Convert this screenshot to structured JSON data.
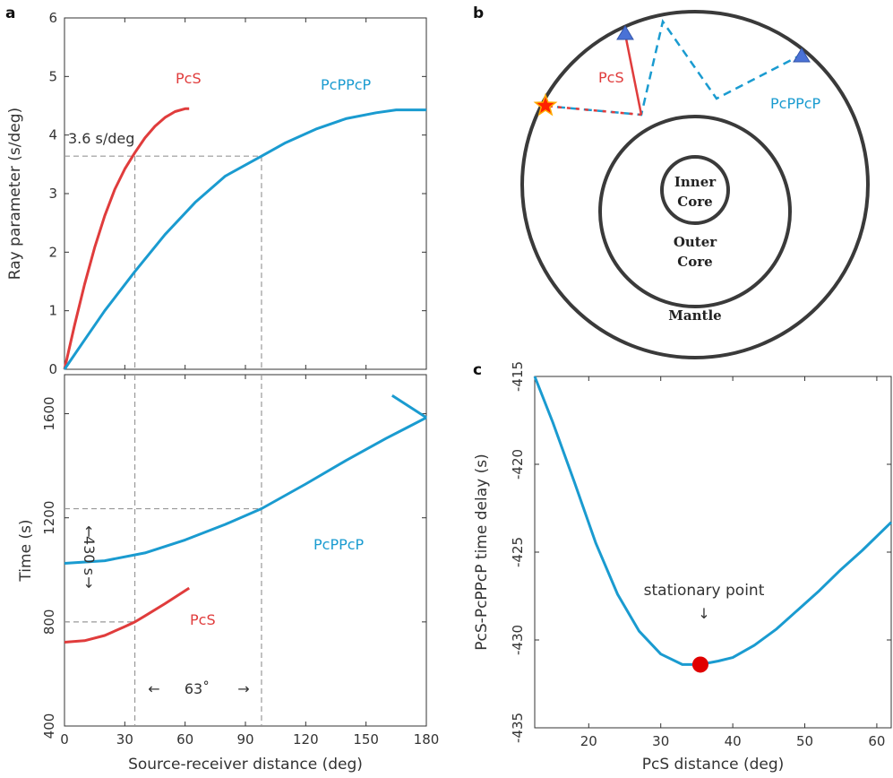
{
  "colors": {
    "pcs": "#e03c3c",
    "pcppcp": "#1a9bd0",
    "axis": "#333333",
    "guide": "#999999",
    "marker": "#e00000",
    "receiver": "#4a72d6",
    "source": "#ff2200"
  },
  "panels": {
    "a": "a",
    "b": "b",
    "c": "c"
  },
  "chart_data": [
    {
      "type": "line",
      "panel": "a-top",
      "xlabel": "",
      "ylabel": "Ray parameter (s/deg)",
      "xlim": [
        0,
        180
      ],
      "ylim": [
        0,
        6
      ],
      "yticks": [
        0,
        1,
        2,
        3,
        4,
        5,
        6
      ],
      "series": [
        {
          "name": "PcS",
          "color": "#e03c3c",
          "x": [
            0,
            5,
            10,
            15,
            20,
            25,
            30,
            35,
            40,
            45,
            50,
            55,
            60,
            62
          ],
          "y": [
            0,
            0.75,
            1.45,
            2.08,
            2.62,
            3.07,
            3.42,
            3.7,
            3.95,
            4.15,
            4.3,
            4.4,
            4.45,
            4.45
          ]
        },
        {
          "name": "PcPPcP",
          "color": "#1a9bd0",
          "x": [
            0,
            10,
            20,
            35,
            50,
            65,
            80,
            98,
            110,
            125,
            140,
            155,
            165,
            180
          ],
          "y": [
            0,
            0.5,
            1.0,
            1.67,
            2.3,
            2.85,
            3.3,
            3.64,
            3.87,
            4.1,
            4.28,
            4.38,
            4.43,
            4.43
          ]
        }
      ],
      "annotations": [
        {
          "text": "3.6 s/deg"
        }
      ],
      "guides": {
        "p_value": 3.64,
        "x_values": [
          35,
          98
        ]
      }
    },
    {
      "type": "line",
      "panel": "a-bottom",
      "xlabel": "Source-receiver distance (deg)",
      "ylabel": "Time (s)",
      "xlim": [
        0,
        180
      ],
      "ylim": [
        400,
        1750
      ],
      "xticks": [
        0,
        30,
        60,
        90,
        120,
        150,
        180
      ],
      "yticks": [
        400,
        800,
        1200,
        1600
      ],
      "series": [
        {
          "name": "PcPPcP",
          "color": "#1a9bd0",
          "x": [
            0,
            20,
            40,
            60,
            80,
            98,
            120,
            140,
            160,
            170,
            180
          ],
          "y": [
            1025,
            1035,
            1065,
            1115,
            1175,
            1235,
            1330,
            1420,
            1505,
            1545,
            1585
          ]
        },
        {
          "name": "PcPPcP-branch",
          "color": "#1a9bd0",
          "x": [
            180,
            163
          ],
          "y": [
            1585,
            1670
          ]
        },
        {
          "name": "PcS",
          "color": "#e03c3c",
          "x": [
            0,
            10,
            20,
            30,
            35,
            40,
            50,
            60,
            62
          ],
          "y": [
            722,
            728,
            748,
            782,
            800,
            823,
            870,
            920,
            930
          ]
        }
      ],
      "annotations": [
        {
          "text": "430 s"
        },
        {
          "text": "63˚"
        }
      ],
      "guides": {
        "t_pcs": 800,
        "t_pcppcp": 1235,
        "x_values": [
          35,
          98
        ]
      }
    },
    {
      "type": "line",
      "panel": "c",
      "xlabel": "PcS distance (deg)",
      "ylabel": "PcS-PcPPcP time delay (s)",
      "xlim": [
        12.5,
        62
      ],
      "ylim": [
        -435,
        -415
      ],
      "xticks": [
        20,
        30,
        40,
        50,
        60
      ],
      "yticks": [
        -415,
        -420,
        -425,
        -430,
        -435
      ],
      "series": [
        {
          "name": "",
          "color": "#1a9bd0",
          "x": [
            12.5,
            15,
            18,
            21,
            24,
            27,
            30,
            33,
            35.5,
            38,
            40,
            43,
            46,
            49,
            52,
            55,
            58,
            62
          ],
          "y": [
            -415,
            -417.6,
            -421,
            -424.5,
            -427.4,
            -429.5,
            -430.8,
            -431.4,
            -431.4,
            -431.2,
            -431.0,
            -430.3,
            -429.4,
            -428.3,
            -427.2,
            -426.0,
            -424.9,
            -423.3
          ]
        }
      ],
      "marker": {
        "x": 35.5,
        "y": -431.4,
        "color": "#e00000"
      },
      "annotations": [
        {
          "text": "stationary point"
        }
      ]
    }
  ],
  "diagram": {
    "labels": {
      "inner": [
        "Inner",
        "Core"
      ],
      "outer": [
        "Outer",
        "Core"
      ],
      "mantle": "Mantle",
      "pcs": "PcS",
      "pcppcp": "PcPPcP"
    }
  }
}
